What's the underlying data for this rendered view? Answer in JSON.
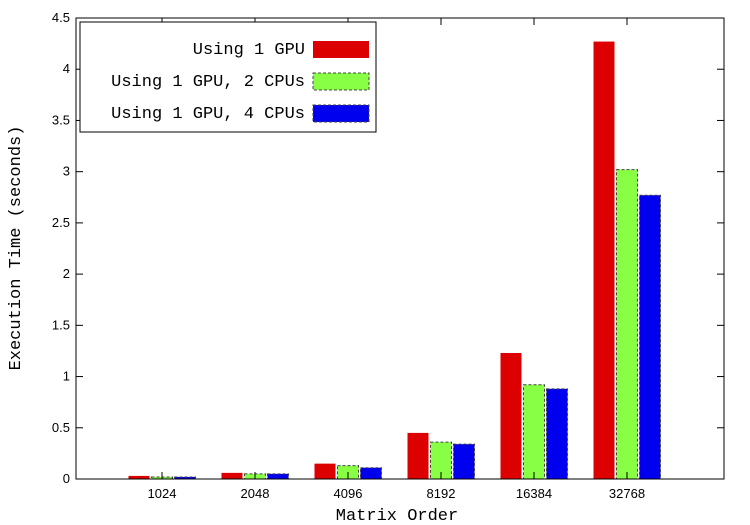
{
  "chart_data": {
    "type": "bar",
    "title": "",
    "xlabel": "Matrix Order",
    "ylabel": "Execution Time (seconds)",
    "categories": [
      "1024",
      "2048",
      "4096",
      "8192",
      "16384",
      "32768"
    ],
    "ylim": [
      0,
      4.5
    ],
    "yticks": [
      "0",
      "0.5",
      "1",
      "1.5",
      "2",
      "2.5",
      "3",
      "3.5",
      "4",
      "4.5"
    ],
    "grid": false,
    "legend_position": "top-left",
    "series": [
      {
        "name": "Using 1 GPU",
        "color": "#dd0000",
        "dashed": false,
        "values": [
          0.03,
          0.06,
          0.15,
          0.45,
          1.23,
          4.27
        ]
      },
      {
        "name": "Using 1 GPU, 2 CPUs",
        "color": "#88ff44",
        "dashed": true,
        "values": [
          0.02,
          0.05,
          0.13,
          0.36,
          0.92,
          3.02
        ]
      },
      {
        "name": "Using 1 GPU, 4 CPUs",
        "color": "#0000ee",
        "dashed": true,
        "values": [
          0.02,
          0.05,
          0.11,
          0.34,
          0.88,
          2.77
        ]
      }
    ]
  }
}
